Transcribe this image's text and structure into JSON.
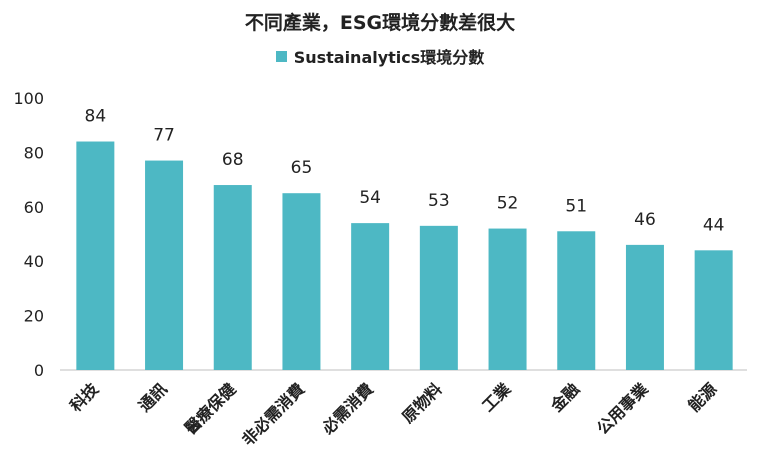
{
  "chart_data": {
    "type": "bar",
    "title": "不同產業，ESG環境分數差很大",
    "categories": [
      "科技",
      "通訊",
      "醫療保健",
      "非必需消費",
      "必需消費",
      "原物料",
      "工業",
      "金融",
      "公用事業",
      "能源"
    ],
    "series": [
      {
        "name": "Sustainalytics環境分數",
        "values": [
          84,
          77,
          68,
          65,
          54,
          53,
          52,
          51,
          46,
          44
        ]
      }
    ],
    "ylim": [
      0,
      100
    ],
    "yticks": [
      0,
      20,
      40,
      60,
      80,
      100
    ],
    "xlabel": "",
    "ylabel": "",
    "grid": false,
    "legend_position": "top",
    "data_labels": true,
    "bar_color": "#4db8c4"
  }
}
